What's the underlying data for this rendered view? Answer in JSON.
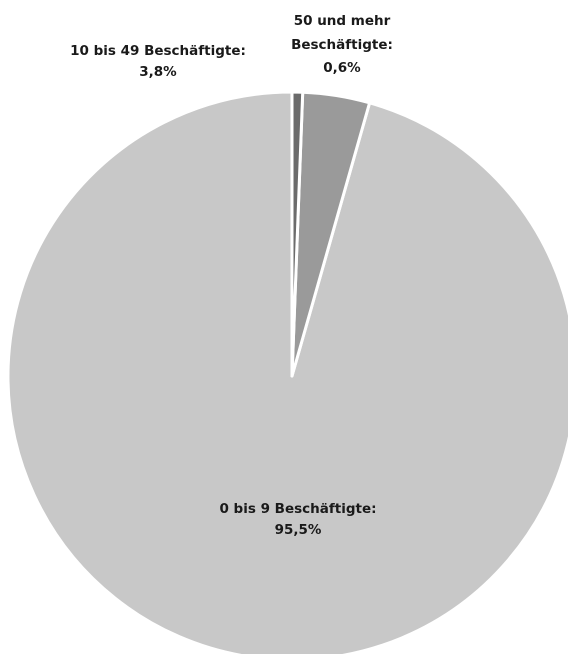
{
  "chart_data": {
    "type": "pie",
    "title": "",
    "start": "top",
    "direction": "counterclockwise",
    "slices": [
      {
        "label_line1": "0 bis 9 Beschäftigte:",
        "label_line2": "95,5%",
        "value": 95.5,
        "color": "#c8c8c8"
      },
      {
        "label_line1": "10 bis 49 Beschäftigte:",
        "label_line2": "3,8%",
        "value": 3.8,
        "color": "#9a9a9a"
      },
      {
        "label_line1": "50 und mehr",
        "label_line1b": "Beschäftigte:",
        "label_line2": "0,6%",
        "value": 0.6,
        "color": "#6b6b6b"
      }
    ],
    "separator_color": "#ffffff"
  }
}
